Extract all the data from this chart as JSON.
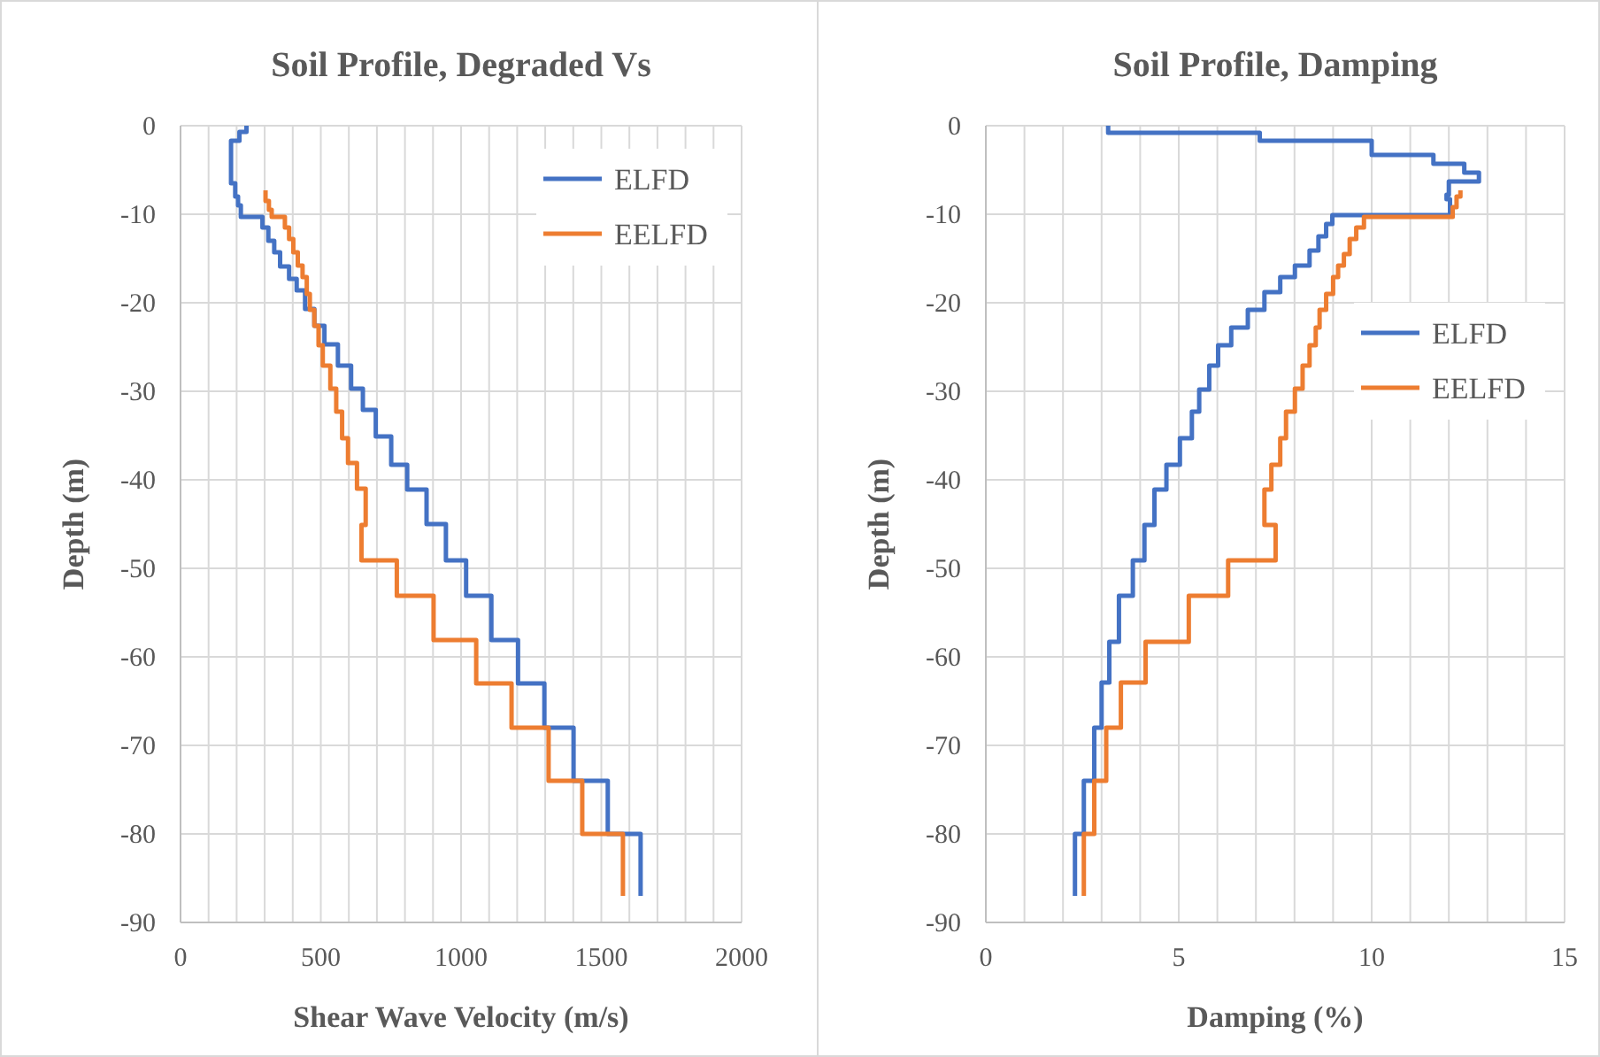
{
  "chart_data": [
    {
      "type": "line",
      "title": "Soil Profile, Degraded Vs",
      "xlabel": "Shear Wave Velocity (m/s)",
      "ylabel": "Depth (m)",
      "xlim": [
        0,
        2000
      ],
      "ylim": [
        -90,
        0
      ],
      "xticks": [
        0,
        {
          "value": 100,
          "label": null
        },
        {
          "value": 200,
          "label": null
        },
        {
          "value": 300,
          "label": null
        },
        {
          "value": 400,
          "label": null
        },
        500,
        {
          "value": 600,
          "label": null
        },
        {
          "value": 700,
          "label": null
        },
        {
          "value": 800,
          "label": null
        },
        {
          "value": 900,
          "label": null
        },
        1000,
        {
          "value": 1100,
          "label": null
        },
        {
          "value": 1200,
          "label": null
        },
        {
          "value": 1300,
          "label": null
        },
        {
          "value": 1400,
          "label": null
        },
        1500,
        {
          "value": 1600,
          "label": null
        },
        {
          "value": 1700,
          "label": null
        },
        {
          "value": 1800,
          "label": null
        },
        {
          "value": 1900,
          "label": null
        },
        2000
      ],
      "yticks": [
        0,
        -10,
        -20,
        -30,
        -40,
        -50,
        -60,
        -70,
        -80,
        -90
      ],
      "grid": true,
      "legend": "top right",
      "series": [
        {
          "name": "ELFD",
          "color": "#4472c4",
          "x": [
            235,
            235,
            210,
            210,
            180,
            180,
            195,
            195,
            205,
            205,
            215,
            215,
            225,
            292,
            292,
            313,
            313,
            334,
            334,
            355,
            355,
            387,
            387,
            414,
            414,
            444,
            444,
            477,
            477,
            513,
            513,
            561,
            561,
            608,
            608,
            650,
            650,
            696,
            696,
            751,
            751,
            808,
            808,
            877,
            877,
            946,
            946,
            1018,
            1018,
            1108,
            1108,
            1203,
            1203,
            1297,
            1297,
            1401,
            1401,
            1523,
            1523,
            1640,
            1640
          ],
          "values": [
            0,
            -0.7,
            -0.7,
            -1.7,
            -1.7,
            -6.5,
            -6.5,
            -8,
            -8,
            -9,
            -9,
            -10.3,
            -10.3,
            -10.3,
            -11.5,
            -11.5,
            -13,
            -13,
            -14.3,
            -14.3,
            -15.9,
            -15.9,
            -17.3,
            -17.3,
            -18.6,
            -18.6,
            -20.7,
            -20.7,
            -22.6,
            -22.6,
            -24.7,
            -24.7,
            -27.1,
            -27.1,
            -29.7,
            -29.7,
            -32.1,
            -32.1,
            -35.1,
            -35.1,
            -38.3,
            -38.3,
            -41.1,
            -41.1,
            -45,
            -45,
            -49.1,
            -49.1,
            -53.1,
            -53.1,
            -58.1,
            -58.1,
            -63,
            -63,
            -68,
            -68,
            -74,
            -74,
            -80,
            -80,
            -87
          ]
        },
        {
          "name": "EELFD",
          "color": "#ed7d31",
          "x": [
            303,
            303,
            315,
            315,
            325,
            325,
            372,
            372,
            387,
            387,
            402,
            402,
            418,
            418,
            435,
            435,
            450,
            450,
            461,
            461,
            477,
            477,
            492,
            492,
            507,
            507,
            534,
            534,
            555,
            555,
            576,
            576,
            597,
            597,
            629,
            629,
            660,
            660,
            645,
            645,
            771,
            771,
            902,
            902,
            1054,
            1054,
            1180,
            1180,
            1312,
            1312,
            1432,
            1432,
            1577,
            1577
          ],
          "values": [
            -7.3,
            -8.5,
            -8.5,
            -9.5,
            -9.5,
            -10.3,
            -10.3,
            -11.5,
            -11.5,
            -12.8,
            -12.8,
            -14.3,
            -14.3,
            -15.8,
            -15.8,
            -17.1,
            -17.1,
            -19,
            -19,
            -20.8,
            -20.8,
            -22.6,
            -22.6,
            -24.8,
            -24.8,
            -27.1,
            -27.1,
            -29.7,
            -29.7,
            -32.3,
            -32.3,
            -35.3,
            -35.3,
            -38.1,
            -38.1,
            -41,
            -41,
            -45.1,
            -45.1,
            -49.1,
            -49.1,
            -53.1,
            -53.1,
            -58.1,
            -58.1,
            -63,
            -63,
            -68,
            -68,
            -74,
            -74,
            -80,
            -80,
            -87
          ]
        }
      ]
    },
    {
      "type": "line",
      "title": "Soil Profile, Damping",
      "xlabel": "Damping  (%)",
      "ylabel": "Depth (m)",
      "xlim": [
        0,
        15
      ],
      "ylim": [
        -90,
        0
      ],
      "xticks": [
        0,
        {
          "value": 1,
          "label": null
        },
        {
          "value": 2,
          "label": null
        },
        {
          "value": 3,
          "label": null
        },
        {
          "value": 4,
          "label": null
        },
        5,
        {
          "value": 6,
          "label": null
        },
        {
          "value": 7,
          "label": null
        },
        {
          "value": 8,
          "label": null
        },
        {
          "value": 9,
          "label": null
        },
        10,
        {
          "value": 11,
          "label": null
        },
        {
          "value": 12,
          "label": null
        },
        {
          "value": 13,
          "label": null
        },
        {
          "value": 14,
          "label": null
        },
        15
      ],
      "yticks": [
        0,
        -10,
        -20,
        -30,
        -40,
        -50,
        -60,
        -70,
        -80,
        -90
      ],
      "grid": true,
      "legend": "right",
      "series": [
        {
          "name": "ELFD",
          "color": "#4472c4",
          "x": [
            3.17,
            3.17,
            7.1,
            7.1,
            10.0,
            10.0,
            11.6,
            11.6,
            12.4,
            12.4,
            12.78,
            12.78,
            12.0,
            12.0,
            11.94,
            11.94,
            12.03,
            12.03,
            8.98,
            8.98,
            8.82,
            8.82,
            8.62,
            8.62,
            8.39,
            8.39,
            8.01,
            8.01,
            7.63,
            7.63,
            7.22,
            7.22,
            6.79,
            6.79,
            6.36,
            6.36,
            6.02,
            6.02,
            5.79,
            5.79,
            5.53,
            5.53,
            5.34,
            5.34,
            5.03,
            5.03,
            4.68,
            4.68,
            4.37,
            4.37,
            4.11,
            4.11,
            3.81,
            3.81,
            3.45,
            3.45,
            3.2,
            3.2,
            3.0,
            3.0,
            2.81,
            2.81,
            2.54,
            2.54,
            2.31,
            2.31
          ],
          "values": [
            0,
            -0.8,
            -0.8,
            -1.7,
            -1.7,
            -3.3,
            -3.3,
            -4.3,
            -4.3,
            -5.3,
            -5.3,
            -6.3,
            -6.3,
            -7.8,
            -7.8,
            -8.3,
            -8.3,
            -10.1,
            -10.1,
            -11.1,
            -11.1,
            -12.5,
            -12.5,
            -14.1,
            -14.1,
            -15.8,
            -15.8,
            -17.1,
            -17.1,
            -18.8,
            -18.8,
            -20.8,
            -20.8,
            -22.8,
            -22.8,
            -24.8,
            -24.8,
            -27.1,
            -27.1,
            -29.8,
            -29.8,
            -32.3,
            -32.3,
            -35.3,
            -35.3,
            -38.3,
            -38.3,
            -41.1,
            -41.1,
            -45.1,
            -45.1,
            -49.1,
            -49.1,
            -53.1,
            -53.1,
            -58.3,
            -58.3,
            -62.9,
            -62.9,
            -68,
            -68,
            -74,
            -74,
            -80,
            -80,
            -87
          ]
        },
        {
          "name": "EELFD",
          "color": "#ed7d31",
          "x": [
            12.3,
            12.3,
            12.2,
            12.2,
            12.1,
            12.1,
            9.8,
            9.8,
            9.6,
            9.6,
            9.43,
            9.43,
            9.28,
            9.28,
            9.13,
            9.13,
            9.0,
            9.0,
            8.82,
            8.82,
            8.65,
            8.65,
            8.55,
            8.55,
            8.39,
            8.39,
            8.21,
            8.21,
            8.01,
            8.01,
            7.78,
            7.78,
            7.63,
            7.63,
            7.4,
            7.4,
            7.22,
            7.22,
            7.51,
            7.51,
            6.28,
            6.28,
            5.26,
            5.26,
            4.14,
            4.14,
            3.5,
            3.5,
            3.12,
            3.12,
            2.81,
            2.81,
            2.54,
            2.54
          ],
          "values": [
            -7.3,
            -8,
            -8,
            -9.2,
            -9.2,
            -10.3,
            -10.3,
            -11.5,
            -11.5,
            -12.8,
            -12.8,
            -14.5,
            -14.5,
            -15.8,
            -15.8,
            -17.1,
            -17.1,
            -19,
            -19,
            -20.8,
            -20.8,
            -22.8,
            -22.8,
            -24.8,
            -24.8,
            -27.1,
            -27.1,
            -29.7,
            -29.7,
            -32.3,
            -32.3,
            -35.3,
            -35.3,
            -38.3,
            -38.3,
            -41.1,
            -41.1,
            -45.1,
            -45.1,
            -49.1,
            -49.1,
            -53.1,
            -53.1,
            -58.3,
            -58.3,
            -62.9,
            -62.9,
            -68,
            -68,
            -74,
            -74,
            -80,
            -80,
            -87
          ]
        }
      ]
    }
  ]
}
